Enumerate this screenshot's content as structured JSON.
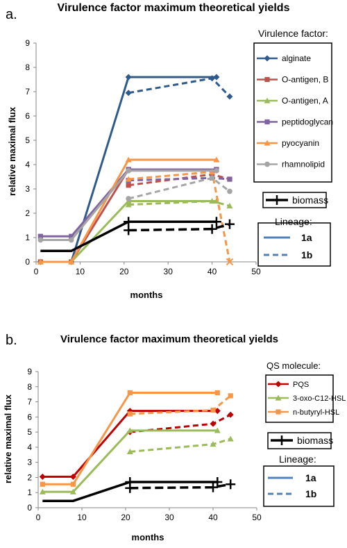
{
  "panels": [
    {
      "panel_label": "a.",
      "legend_title": "Virulence factor:",
      "lineage_title": "Lineage:",
      "lineage_items": [
        "1a",
        "1b"
      ],
      "chart_data": {
        "type": "line",
        "title": "Virulence factor maximum theoretical yields",
        "xlabel": "months",
        "ylabel": "relative maximal flux",
        "xlim": [
          0,
          50
        ],
        "ylim": [
          0,
          9
        ],
        "xticks": [
          "0",
          "10",
          "20",
          "30",
          "40",
          "50"
        ],
        "yticks": [
          "0",
          "1",
          "2",
          "3",
          "4",
          "5",
          "6",
          "7",
          "8",
          "9"
        ],
        "grid": false,
        "legend_position": "right",
        "series": [
          {
            "name": "alginate",
            "color": "#2E5A8C",
            "marker": "diamond",
            "lineage_1a": [
              [
                1,
                0
              ],
              [
                8,
                0
              ],
              [
                21,
                7.6
              ],
              [
                41,
                7.6
              ]
            ],
            "lineage_1b": [
              [
                21,
                6.95
              ],
              [
                40,
                7.55
              ],
              [
                44,
                6.8
              ]
            ]
          },
          {
            "name": "O-antigen, B",
            "color": "#C0504D",
            "marker": "square",
            "lineage_1a": [
              [
                1,
                0
              ],
              [
                8,
                0
              ],
              [
                21,
                3.8
              ],
              [
                41,
                3.8
              ]
            ],
            "lineage_1b": [
              [
                21,
                3.15
              ],
              [
                40,
                3.6
              ],
              [
                44,
                3.4
              ]
            ]
          },
          {
            "name": "O-antigen, A",
            "color": "#9BBB59",
            "marker": "triangle",
            "lineage_1a": [
              [
                1,
                0
              ],
              [
                8,
                0
              ],
              [
                21,
                2.5
              ],
              [
                41,
                2.5
              ]
            ],
            "lineage_1b": [
              [
                21,
                2.35
              ],
              [
                40,
                2.5
              ],
              [
                44,
                2.3
              ]
            ]
          },
          {
            "name": "peptidoglycan",
            "color": "#8064A2",
            "marker": "square",
            "lineage_1a": [
              [
                1,
                1.05
              ],
              [
                8,
                1.05
              ],
              [
                21,
                3.8
              ],
              [
                41,
                3.8
              ]
            ],
            "lineage_1b": [
              [
                21,
                3.35
              ],
              [
                40,
                3.45
              ],
              [
                44,
                3.4
              ]
            ]
          },
          {
            "name": "pyocyanin",
            "color": "#F79646",
            "marker": "triangle",
            "lineage_1a": [
              [
                1,
                0
              ],
              [
                8,
                0
              ],
              [
                21,
                4.2
              ],
              [
                41,
                4.2
              ]
            ],
            "lineage_1b": [
              [
                21,
                3.4
              ],
              [
                40,
                3.7
              ],
              [
                44,
                0
              ]
            ]
          },
          {
            "name": "rhamnolipid",
            "color": "#A5A5A5",
            "marker": "circle",
            "lineage_1a": [
              [
                1,
                0.9
              ],
              [
                8,
                0.9
              ],
              [
                21,
                3.75
              ],
              [
                41,
                3.75
              ]
            ],
            "lineage_1b": [
              [
                21,
                2.6
              ],
              [
                40,
                3.45
              ],
              [
                44,
                2.9
              ]
            ]
          }
        ],
        "biomass": {
          "name": "biomass",
          "color": "#000000",
          "lineage_1a": [
            [
              1,
              0.45
            ],
            [
              8,
              0.45
            ],
            [
              21,
              1.65
            ],
            [
              41,
              1.65
            ]
          ],
          "lineage_1b": [
            [
              21,
              1.3
            ],
            [
              40,
              1.35
            ],
            [
              44,
              1.55
            ]
          ]
        }
      }
    },
    {
      "panel_label": "b.",
      "legend_title": "QS molecule:",
      "lineage_title": "Lineage:",
      "lineage_items": [
        "1a",
        "1b"
      ],
      "chart_data": {
        "type": "line",
        "title": "Virulence factor maximum theoretical yields",
        "xlabel": "months",
        "ylabel": "relative maximal flux",
        "xlim": [
          0,
          50
        ],
        "ylim": [
          0,
          9
        ],
        "xticks": [
          "0",
          "10",
          "20",
          "30",
          "40",
          "50"
        ],
        "yticks": [
          "0",
          "1",
          "2",
          "3",
          "4",
          "5",
          "6",
          "7",
          "8",
          "9"
        ],
        "grid": false,
        "legend_position": "right",
        "series": [
          {
            "name": "PQS",
            "color": "#C00000",
            "marker": "diamond",
            "lineage_1a": [
              [
                1,
                2.05
              ],
              [
                8,
                2.05
              ],
              [
                21,
                6.4
              ],
              [
                41,
                6.4
              ]
            ],
            "lineage_1b": [
              [
                21,
                5.0
              ],
              [
                40,
                5.55
              ],
              [
                44,
                6.15
              ]
            ]
          },
          {
            "name": "3-oxo-C12-HSL",
            "color": "#9BBB59",
            "marker": "triangle",
            "lineage_1a": [
              [
                1,
                1.05
              ],
              [
                8,
                1.05
              ],
              [
                21,
                5.1
              ],
              [
                41,
                5.1
              ]
            ],
            "lineage_1b": [
              [
                21,
                3.7
              ],
              [
                40,
                4.2
              ],
              [
                44,
                4.55
              ]
            ]
          },
          {
            "name": "n-butyryl-HSL",
            "color": "#F79646",
            "marker": "square",
            "lineage_1a": [
              [
                1,
                1.55
              ],
              [
                8,
                1.55
              ],
              [
                21,
                7.6
              ],
              [
                41,
                7.6
              ]
            ],
            "lineage_1b": [
              [
                21,
                6.2
              ],
              [
                40,
                6.45
              ],
              [
                44,
                7.4
              ]
            ]
          }
        ],
        "biomass": {
          "name": "biomass",
          "color": "#000000",
          "lineage_1a": [
            [
              1,
              0.45
            ],
            [
              8,
              0.45
            ],
            [
              21,
              1.7
            ],
            [
              41,
              1.7
            ]
          ],
          "lineage_1b": [
            [
              21,
              1.3
            ],
            [
              40,
              1.35
            ],
            [
              44,
              1.55
            ]
          ]
        }
      }
    }
  ]
}
